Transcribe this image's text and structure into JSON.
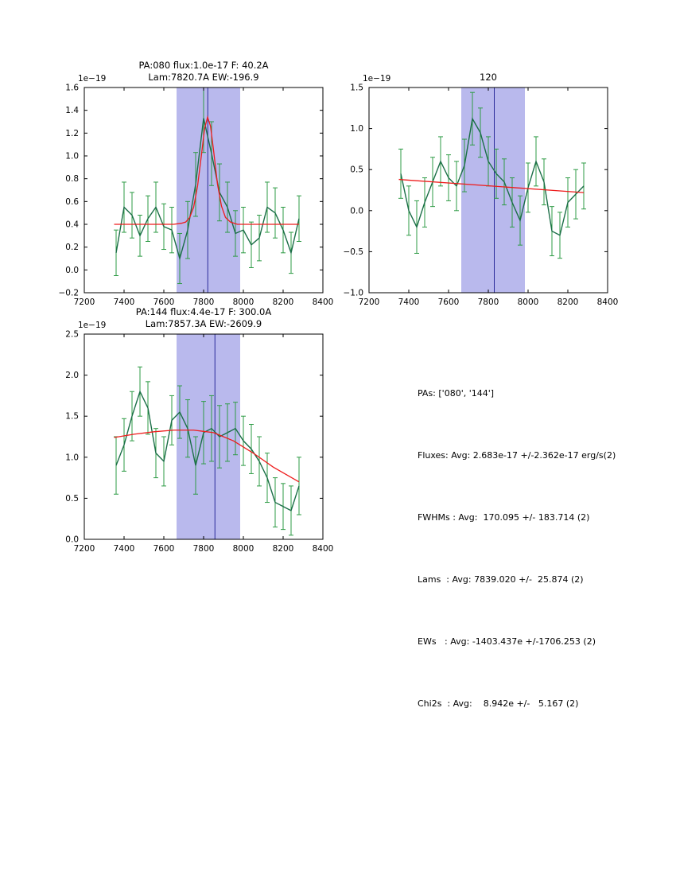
{
  "figure": {
    "background": "#ffffff"
  },
  "colors": {
    "band": "#b9b9ed",
    "vline": "#2a2a99",
    "data": "#1b6e47",
    "err": "#2e9b45",
    "fit": "#ee1c1c",
    "axes": "#000000"
  },
  "summary": {
    "lines": [
      "PAs: ['080', '144']",
      "Fluxes: Avg: 2.683e-17 +/-2.362e-17 erg/s(2)",
      "FWHMs : Avg:  170.095 +/- 183.714 (2)",
      "Lams  : Avg: 7839.020 +/-  25.874 (2)",
      "EWs   : Avg: -1403.437e +/-1706.253 (2)",
      "Chi2s  : Avg:    8.942e +/-   5.167 (2)"
    ]
  },
  "chart_data": [
    {
      "type": "line",
      "title_lines": [
        "PA:080 flux:1.0e-17 F: 40.2A",
        "Lam:7820.7A EW:-196.9"
      ],
      "offset_label": "1e−19",
      "xlim": [
        7200,
        8400
      ],
      "ylim": [
        -0.2,
        1.6
      ],
      "xticks": [
        7200,
        7400,
        7600,
        7800,
        8000,
        8200,
        8400
      ],
      "xtick_labels": [
        "7200",
        "7400",
        "7600",
        "7800",
        "8000",
        "8200",
        "8400"
      ],
      "yticks": [
        -0.2,
        0.0,
        0.2,
        0.4,
        0.6,
        0.8,
        1.0,
        1.2,
        1.4,
        1.6
      ],
      "ytick_labels": [
        "−0.2",
        "0.0",
        "0.2",
        "0.4",
        "0.6",
        "0.8",
        "1.0",
        "1.2",
        "1.4",
        "1.6"
      ],
      "band": [
        7664,
        7984
      ],
      "vline": 7821,
      "x": [
        7360,
        7400,
        7440,
        7480,
        7520,
        7560,
        7600,
        7640,
        7680,
        7720,
        7760,
        7800,
        7840,
        7880,
        7920,
        7960,
        8000,
        8040,
        8080,
        8120,
        8160,
        8200,
        8240,
        8280
      ],
      "y": [
        0.15,
        0.55,
        0.48,
        0.3,
        0.45,
        0.55,
        0.38,
        0.35,
        0.1,
        0.35,
        0.75,
        1.33,
        1.02,
        0.68,
        0.55,
        0.32,
        0.35,
        0.22,
        0.28,
        0.55,
        0.5,
        0.35,
        0.15,
        0.45
      ],
      "yerr": [
        0.2,
        0.22,
        0.2,
        0.18,
        0.2,
        0.22,
        0.2,
        0.2,
        0.22,
        0.25,
        0.28,
        0.3,
        0.28,
        0.25,
        0.22,
        0.2,
        0.2,
        0.2,
        0.2,
        0.22,
        0.22,
        0.2,
        0.18,
        0.2
      ],
      "fit": {
        "x": [
          7350,
          7500,
          7650,
          7690,
          7710,
          7730,
          7750,
          7770,
          7790,
          7805,
          7820,
          7835,
          7850,
          7870,
          7890,
          7910,
          7935,
          7970,
          8050,
          8150,
          8280
        ],
        "y": [
          0.4,
          0.4,
          0.4,
          0.41,
          0.42,
          0.46,
          0.55,
          0.74,
          1.02,
          1.24,
          1.34,
          1.26,
          1.05,
          0.75,
          0.56,
          0.46,
          0.42,
          0.4,
          0.4,
          0.4,
          0.4
        ]
      }
    },
    {
      "type": "line",
      "title_lines": [
        "120"
      ],
      "offset_label": "1e−19",
      "xlim": [
        7200,
        8400
      ],
      "ylim": [
        -1.0,
        1.5
      ],
      "xticks": [
        7200,
        7400,
        7600,
        7800,
        8000,
        8200,
        8400
      ],
      "xtick_labels": [
        "7200",
        "7400",
        "7600",
        "7800",
        "8000",
        "8200",
        "8400"
      ],
      "yticks": [
        -1.0,
        -0.5,
        0.0,
        0.5,
        1.0,
        1.5
      ],
      "ytick_labels": [
        "−1.0",
        "−0.5",
        "0.0",
        "0.5",
        "1.0",
        "1.5"
      ],
      "band": [
        7664,
        7984
      ],
      "vline": 7830,
      "x": [
        7360,
        7400,
        7440,
        7480,
        7520,
        7560,
        7600,
        7640,
        7680,
        7720,
        7760,
        7800,
        7840,
        7880,
        7920,
        7960,
        8000,
        8040,
        8080,
        8120,
        8160,
        8200,
        8240,
        8280
      ],
      "y": [
        0.45,
        0.0,
        -0.2,
        0.1,
        0.35,
        0.6,
        0.4,
        0.3,
        0.55,
        1.12,
        0.95,
        0.6,
        0.45,
        0.35,
        0.1,
        -0.12,
        0.28,
        0.6,
        0.35,
        -0.25,
        -0.3,
        0.1,
        0.2,
        0.3
      ],
      "yerr": [
        0.3,
        0.3,
        0.32,
        0.3,
        0.3,
        0.3,
        0.28,
        0.3,
        0.32,
        0.32,
        0.3,
        0.3,
        0.3,
        0.28,
        0.3,
        0.3,
        0.3,
        0.3,
        0.28,
        0.3,
        0.28,
        0.3,
        0.3,
        0.28
      ],
      "fit": {
        "x": [
          7350,
          8280
        ],
        "y": [
          0.38,
          0.22
        ]
      }
    },
    {
      "type": "line",
      "title_lines": [
        "PA:144 flux:4.4e-17 F: 300.0A",
        "Lam:7857.3A EW:-2609.9"
      ],
      "offset_label": "1e−19",
      "xlim": [
        7200,
        8400
      ],
      "ylim": [
        0.0,
        2.5
      ],
      "xticks": [
        7200,
        7400,
        7600,
        7800,
        8000,
        8200,
        8400
      ],
      "xtick_labels": [
        "7200",
        "7400",
        "7600",
        "7800",
        "8000",
        "8200",
        "8400"
      ],
      "yticks": [
        0.0,
        0.5,
        1.0,
        1.5,
        2.0,
        2.5
      ],
      "ytick_labels": [
        "0.0",
        "0.5",
        "1.0",
        "1.5",
        "2.0",
        "2.5"
      ],
      "band": [
        7664,
        7984
      ],
      "vline": 7857,
      "x": [
        7360,
        7400,
        7440,
        7480,
        7520,
        7560,
        7600,
        7640,
        7680,
        7720,
        7760,
        7800,
        7840,
        7880,
        7920,
        7960,
        8000,
        8040,
        8080,
        8120,
        8160,
        8200,
        8240,
        8280
      ],
      "y": [
        0.9,
        1.15,
        1.5,
        1.8,
        1.6,
        1.05,
        0.95,
        1.45,
        1.55,
        1.35,
        0.9,
        1.3,
        1.35,
        1.25,
        1.3,
        1.35,
        1.2,
        1.1,
        0.95,
        0.75,
        0.45,
        0.4,
        0.35,
        0.65
      ],
      "yerr": [
        0.35,
        0.32,
        0.3,
        0.3,
        0.32,
        0.3,
        0.3,
        0.3,
        0.32,
        0.35,
        0.35,
        0.38,
        0.4,
        0.38,
        0.35,
        0.32,
        0.3,
        0.3,
        0.3,
        0.3,
        0.3,
        0.28,
        0.3,
        0.35
      ],
      "fit": {
        "x": [
          7350,
          7450,
          7550,
          7650,
          7750,
          7850,
          7950,
          8050,
          8150,
          8280
        ],
        "y": [
          1.24,
          1.28,
          1.31,
          1.33,
          1.33,
          1.3,
          1.2,
          1.05,
          0.88,
          0.7
        ]
      }
    }
  ]
}
